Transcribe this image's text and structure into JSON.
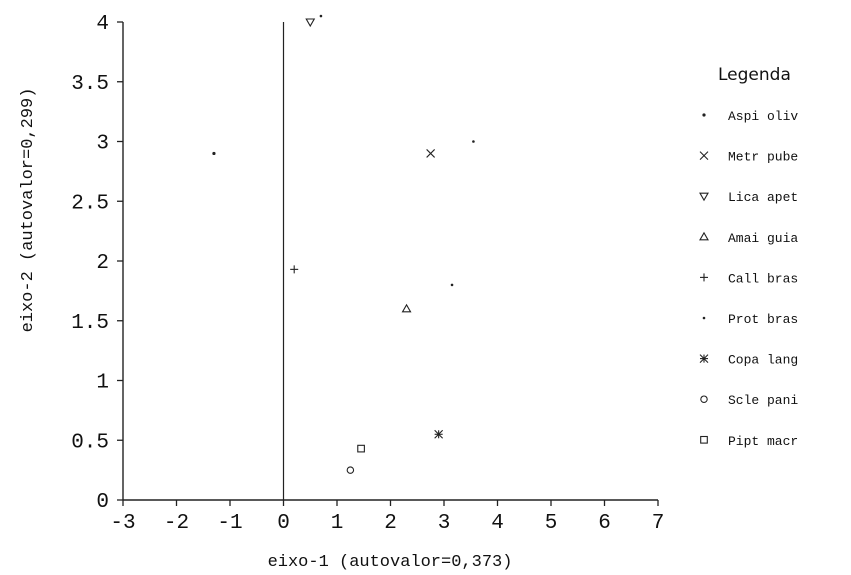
{
  "chart_data": {
    "type": "scatter",
    "xlabel": "eixo-1 (autovalor=0,373)",
    "ylabel": "eixo-2 (autovalor=0,299)",
    "xlim": [
      -3,
      7
    ],
    "ylim": [
      0,
      4
    ],
    "x_ticks": [
      "-3",
      "-2",
      "-1",
      "0",
      "1",
      "2",
      "3",
      "4",
      "5",
      "6",
      "7"
    ],
    "y_ticks": [
      "0",
      "0.5",
      "1",
      "1.5",
      "2",
      "2.5",
      "3",
      "3.5",
      "4"
    ],
    "x_tick_values": [
      -3,
      -2,
      -1,
      0,
      1,
      2,
      3,
      4,
      5,
      6,
      7
    ],
    "y_tick_values": [
      0,
      0.5,
      1,
      1.5,
      2,
      2.5,
      3,
      3.5,
      4
    ],
    "reference_lines": {
      "vertical_at_x": 0
    },
    "legend": {
      "title": "Legenda",
      "placement": "right"
    },
    "series": [
      {
        "name": "Aspi oliv",
        "marker": "dot",
        "x": [
          -1.3
        ],
        "y": [
          2.9
        ]
      },
      {
        "name": "Metr pube",
        "marker": "x",
        "x": [
          2.75
        ],
        "y": [
          2.9
        ]
      },
      {
        "name": "Lica apet",
        "marker": "triangle-down",
        "x": [
          0.5
        ],
        "y": [
          4.0
        ]
      },
      {
        "name": "Amai guia",
        "marker": "triangle-up",
        "x": [
          2.3
        ],
        "y": [
          1.6
        ]
      },
      {
        "name": "Call bras",
        "marker": "plus",
        "x": [
          0.2
        ],
        "y": [
          1.93
        ]
      },
      {
        "name": "Prot bras",
        "marker": "small-dot",
        "x": [
          3.15,
          3.55,
          0.7
        ],
        "y": [
          1.8,
          3.0,
          4.05
        ]
      },
      {
        "name": "Copa lang",
        "marker": "asterisk",
        "x": [
          2.9
        ],
        "y": [
          0.55
        ]
      },
      {
        "name": "Scle pani",
        "marker": "circle",
        "x": [
          1.25
        ],
        "y": [
          0.25
        ]
      },
      {
        "name": "Pipt macr",
        "marker": "square",
        "x": [
          1.45
        ],
        "y": [
          0.43
        ]
      }
    ]
  }
}
